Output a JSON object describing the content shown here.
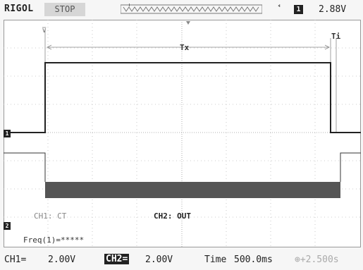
{
  "header": {
    "brand": "RIGOL",
    "run_state": "STOP",
    "trigger_edge_icon": "rising-edge-icon",
    "trigger_source": "1",
    "trigger_level": "2.88V"
  },
  "screen": {
    "measure_label_tx": "Tx",
    "measure_label_ti": "Ti",
    "channel_tags": {
      "ch1": "CH1: CT",
      "ch2": "CH2: OUT"
    },
    "frequency": "Freq(1)=*****",
    "markers": {
      "ch1": "1",
      "ch2": "2"
    },
    "trace_color": "#222222",
    "noise_color": "#555555"
  },
  "footer": {
    "ch1_label": "CH1=",
    "ch1_scale": "2.00V",
    "ch2_label": "CH2=",
    "ch2_scale": "2.00V",
    "time_label": "Time",
    "time_scale": "500.0ms",
    "trigger_offset": "⊕+2.500s"
  }
}
